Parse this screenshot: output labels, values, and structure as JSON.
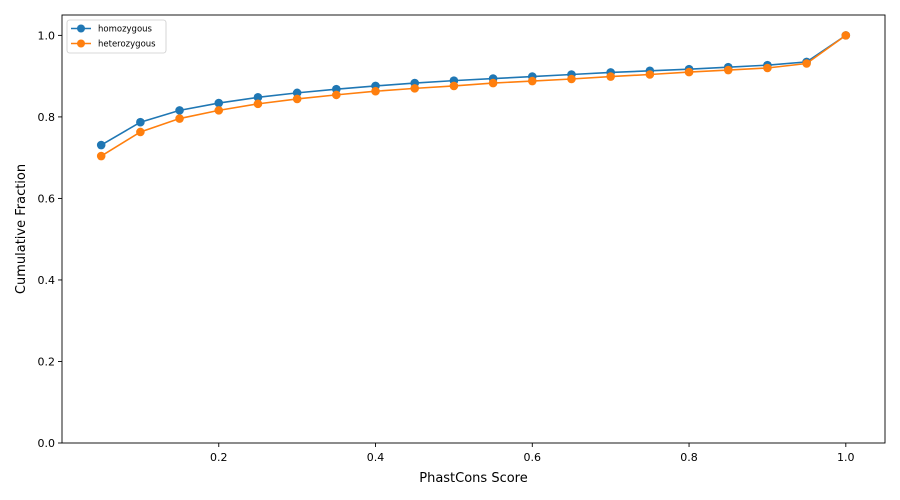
{
  "chart_data": {
    "type": "line",
    "title": "",
    "xlabel": "PhastCons Score",
    "ylabel": "Cumulative Fraction",
    "xlim": [
      0.0,
      1.05
    ],
    "ylim": [
      0.0,
      1.05
    ],
    "xticks": [
      0.2,
      0.4,
      0.6,
      0.8,
      1.0
    ],
    "xtick_labels": [
      "0.2",
      "0.4",
      "0.6",
      "0.8",
      "1.0"
    ],
    "yticks": [
      0.0,
      0.2,
      0.4,
      0.6,
      0.8,
      1.0
    ],
    "ytick_labels": [
      "0.0",
      "0.2",
      "0.4",
      "0.6",
      "0.8",
      "1.0"
    ],
    "grid": false,
    "legend_position": "top-left",
    "x": [
      0.05,
      0.1,
      0.15,
      0.2,
      0.25,
      0.3,
      0.35,
      0.4,
      0.45,
      0.5,
      0.55,
      0.6,
      0.65,
      0.7,
      0.75,
      0.8,
      0.85,
      0.9,
      0.95,
      1.0
    ],
    "series": [
      {
        "name": "homozygous",
        "color": "#1f77b4",
        "values": [
          0.731,
          0.787,
          0.816,
          0.834,
          0.848,
          0.859,
          0.868,
          0.876,
          0.883,
          0.889,
          0.894,
          0.899,
          0.904,
          0.909,
          0.913,
          0.917,
          0.922,
          0.927,
          0.935,
          1.0
        ]
      },
      {
        "name": "heterozygous",
        "color": "#ff7f0e",
        "values": [
          0.704,
          0.763,
          0.796,
          0.816,
          0.832,
          0.844,
          0.854,
          0.863,
          0.87,
          0.876,
          0.883,
          0.888,
          0.893,
          0.899,
          0.904,
          0.91,
          0.915,
          0.92,
          0.931,
          1.0
        ]
      }
    ]
  }
}
